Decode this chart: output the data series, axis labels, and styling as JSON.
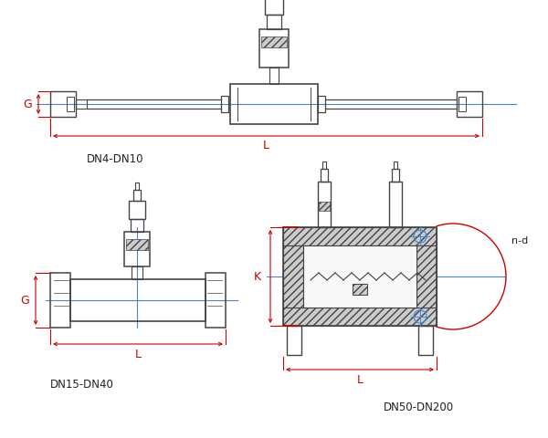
{
  "bg_color": "#ffffff",
  "line_color": "#444444",
  "red_color": "#cc0000",
  "blue_color": "#4488cc",
  "label_color": "#222222",
  "fig_width": 6.0,
  "fig_height": 4.81,
  "labels": {
    "dn4": "DN4-DN10",
    "dn15": "DN15-DN40",
    "dn50": "DN50-DN200",
    "G": "G",
    "L": "L",
    "K": "K",
    "nd": "n-d"
  }
}
